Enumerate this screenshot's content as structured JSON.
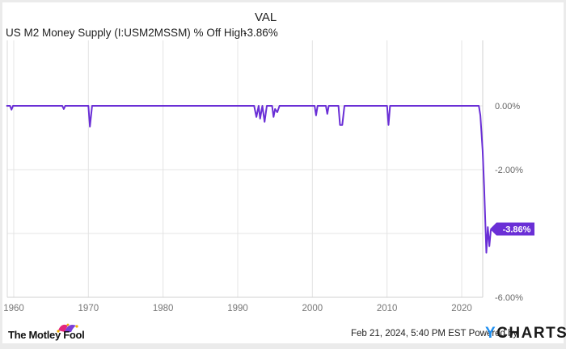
{
  "header": {
    "value_column_label": "VAL",
    "series_name": "US M2 Money Supply (I:USM2MSSM) % Off High",
    "series_value": "-3.86%"
  },
  "footer": {
    "timestamp": "Feb 21, 2024, 5:40 PM EST",
    "powered_by": "Powered by",
    "ycharts_y": "Y",
    "ycharts_rest": "CHARTS",
    "motley_fool": "The Motley Fool"
  },
  "colors": {
    "line": "#6a2fd6",
    "badge": "#6a2fd6",
    "grid": "#e4e4e4",
    "ycharts_accent": "#1d8ef0"
  },
  "chart_data": {
    "type": "line",
    "title": "US M2 Money Supply (I:USM2MSSM) % Off High",
    "xlabel": "",
    "ylabel": "",
    "x_ticks": [
      "1960",
      "1970",
      "1980",
      "1990",
      "2000",
      "2010",
      "2020"
    ],
    "y_ticks": [
      "0.00%",
      "-2.00%",
      "-4.00%",
      "-6.00%"
    ],
    "y_tick_labels_visible": [
      "0.00%",
      "-2.00%",
      "-6.00%"
    ],
    "ylim": [
      -6.0,
      0.6
    ],
    "xlim": [
      1959,
      2024.2
    ],
    "grid": true,
    "last_value_label": "-3.86%",
    "series": [
      {
        "name": "US M2 Money Supply % Off High",
        "points": [
          [
            1959.0,
            0.0
          ],
          [
            1959.5,
            0.0
          ],
          [
            1959.7,
            -0.12
          ],
          [
            1959.9,
            0.0
          ],
          [
            1966.5,
            0.0
          ],
          [
            1966.7,
            -0.1
          ],
          [
            1966.9,
            0.0
          ],
          [
            1970.0,
            0.0
          ],
          [
            1970.2,
            -0.65
          ],
          [
            1970.5,
            0.0
          ],
          [
            1990.0,
            0.0
          ],
          [
            1992.2,
            0.0
          ],
          [
            1992.5,
            -0.35
          ],
          [
            1992.8,
            0.0
          ],
          [
            1993.0,
            -0.4
          ],
          [
            1993.3,
            0.0
          ],
          [
            1993.6,
            -0.5
          ],
          [
            1993.9,
            0.0
          ],
          [
            1994.6,
            0.0
          ],
          [
            1994.8,
            -0.35
          ],
          [
            1995.0,
            -0.1
          ],
          [
            1995.3,
            -0.2
          ],
          [
            1995.6,
            0.0
          ],
          [
            2000.3,
            0.0
          ],
          [
            2000.5,
            -0.3
          ],
          [
            2000.7,
            0.0
          ],
          [
            2001.8,
            0.0
          ],
          [
            2002.0,
            -0.25
          ],
          [
            2002.2,
            0.0
          ],
          [
            2003.5,
            0.0
          ],
          [
            2003.7,
            -0.6
          ],
          [
            2004.0,
            -0.6
          ],
          [
            2004.3,
            0.0
          ],
          [
            2010.0,
            0.0
          ],
          [
            2010.2,
            -0.6
          ],
          [
            2010.4,
            0.0
          ],
          [
            2022.3,
            0.0
          ],
          [
            2022.5,
            -0.3
          ],
          [
            2022.8,
            -1.4
          ],
          [
            2023.0,
            -2.5
          ],
          [
            2023.3,
            -4.6
          ],
          [
            2023.5,
            -3.8
          ],
          [
            2023.7,
            -4.4
          ],
          [
            2023.9,
            -3.9
          ],
          [
            2024.1,
            -3.86
          ]
        ]
      }
    ]
  }
}
